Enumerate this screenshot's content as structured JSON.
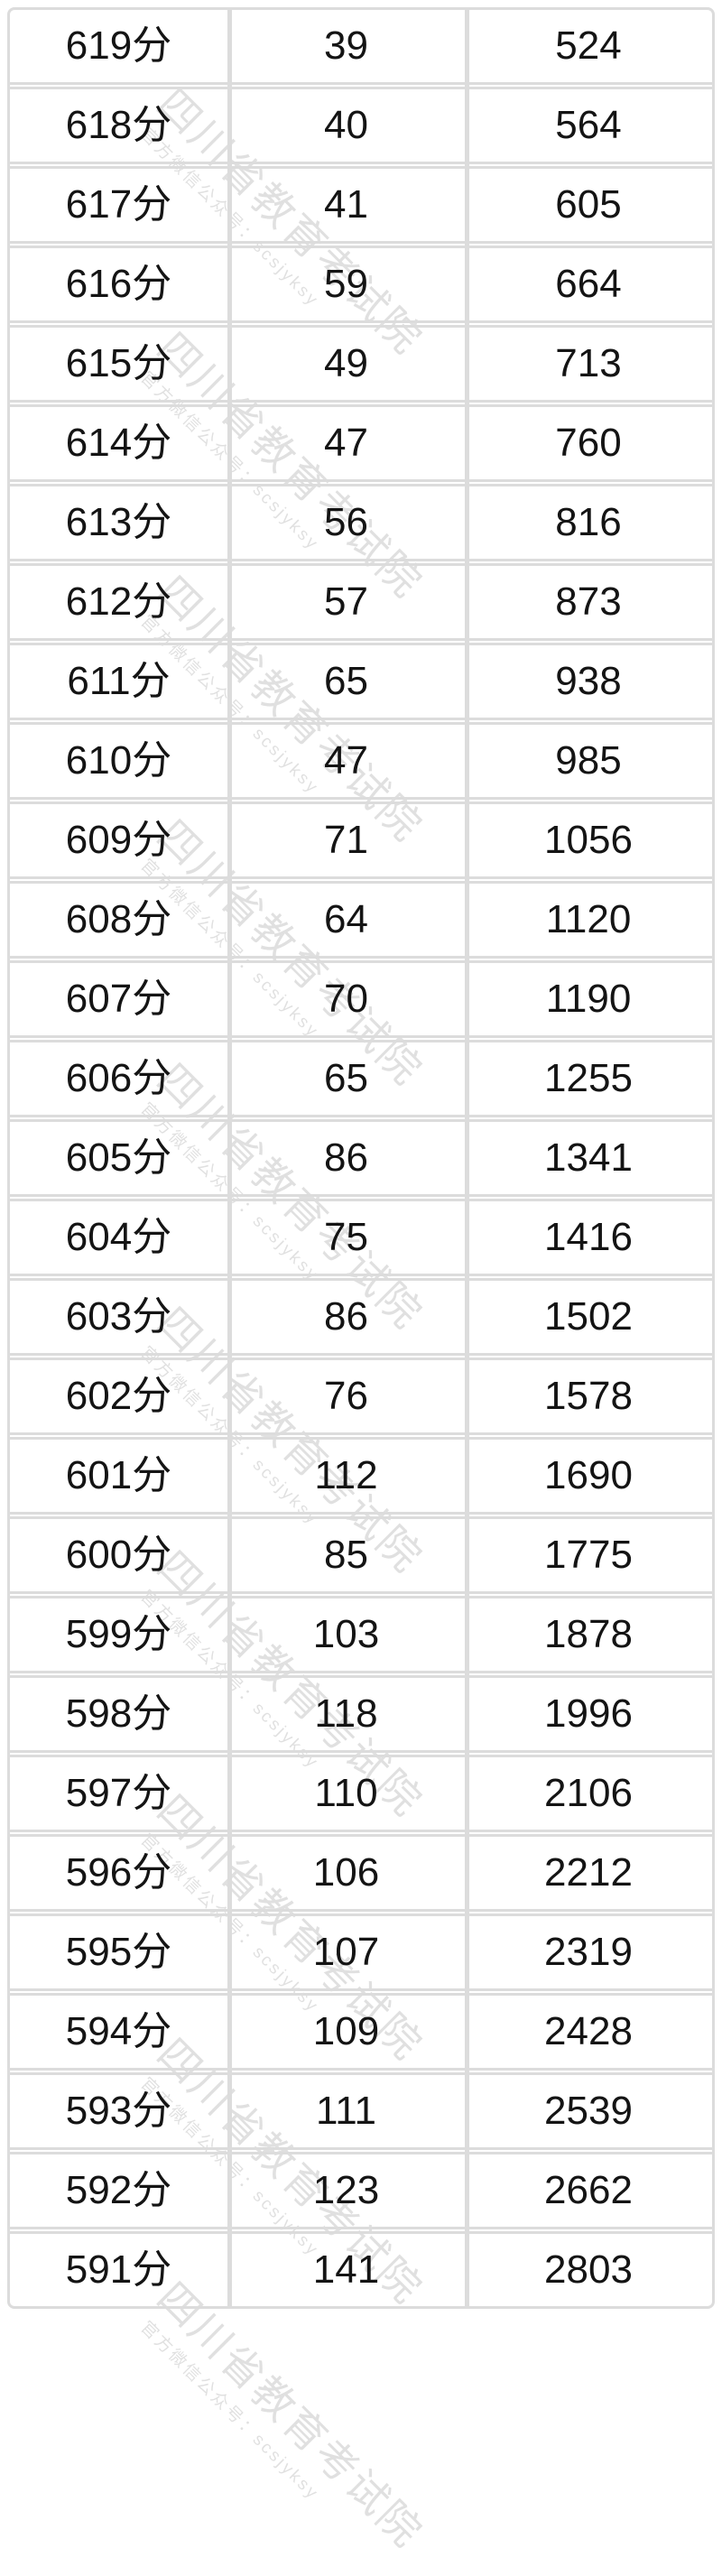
{
  "table": {
    "rows": [
      [
        "619分",
        "39",
        "524"
      ],
      [
        "618分",
        "40",
        "564"
      ],
      [
        "617分",
        "41",
        "605"
      ],
      [
        "616分",
        "59",
        "664"
      ],
      [
        "615分",
        "49",
        "713"
      ],
      [
        "614分",
        "47",
        "760"
      ],
      [
        "613分",
        "56",
        "816"
      ],
      [
        "612分",
        "57",
        "873"
      ],
      [
        "611分",
        "65",
        "938"
      ],
      [
        "610分",
        "47",
        "985"
      ],
      [
        "609分",
        "71",
        "1056"
      ],
      [
        "608分",
        "64",
        "1120"
      ],
      [
        "607分",
        "70",
        "1190"
      ],
      [
        "606分",
        "65",
        "1255"
      ],
      [
        "605分",
        "86",
        "1341"
      ],
      [
        "604分",
        "75",
        "1416"
      ],
      [
        "603分",
        "86",
        "1502"
      ],
      [
        "602分",
        "76",
        "1578"
      ],
      [
        "601分",
        "112",
        "1690"
      ],
      [
        "600分",
        "85",
        "1775"
      ],
      [
        "599分",
        "103",
        "1878"
      ],
      [
        "598分",
        "118",
        "1996"
      ],
      [
        "597分",
        "110",
        "2106"
      ],
      [
        "596分",
        "106",
        "2212"
      ],
      [
        "595分",
        "107",
        "2319"
      ],
      [
        "594分",
        "109",
        "2428"
      ],
      [
        "593分",
        "111",
        "2539"
      ],
      [
        "592分",
        "123",
        "2662"
      ],
      [
        "591分",
        "141",
        "2803"
      ]
    ]
  },
  "watermark": {
    "main": "四川省教育考试院",
    "sub": "官方微信公众号：scsjyksy"
  },
  "colors": {
    "border": "#dcdcdc",
    "text": "#141414",
    "watermark": "rgba(0,0,0,0.12)"
  }
}
